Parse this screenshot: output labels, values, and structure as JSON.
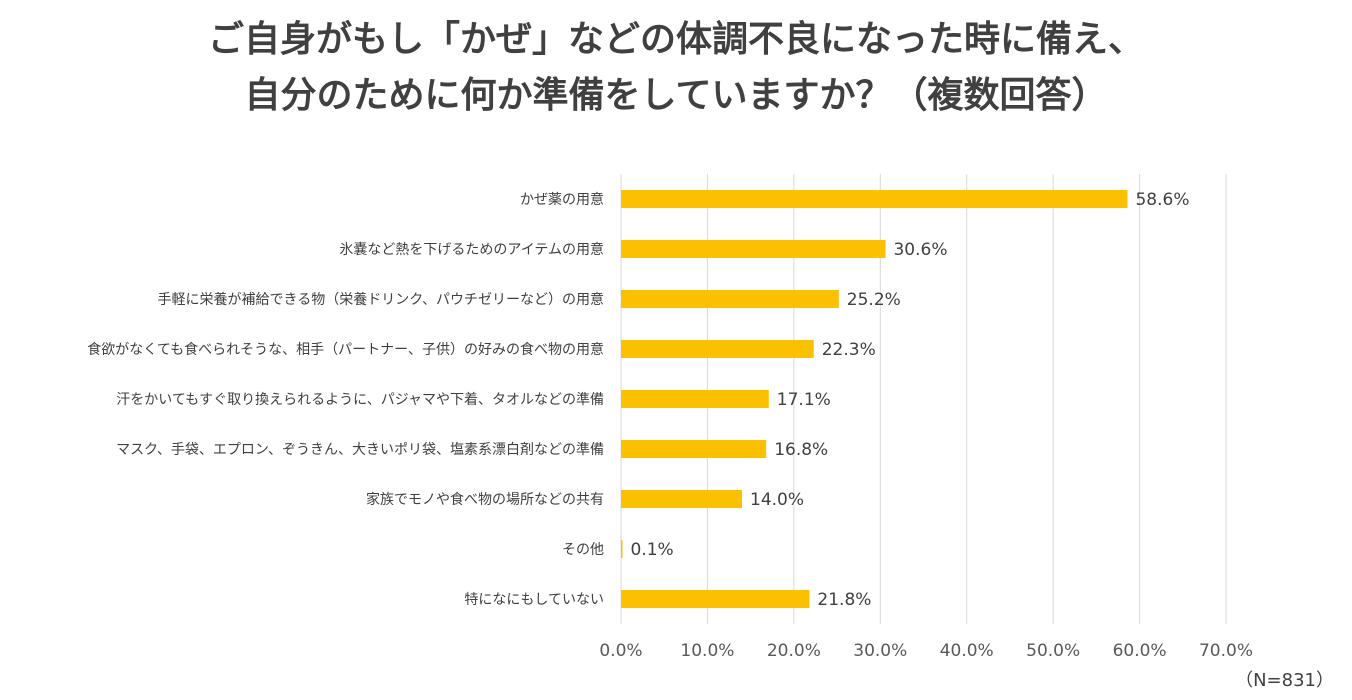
{
  "title": {
    "line1": "ご自身がもし「かぜ」などの体調不良になった時に備え、",
    "line2": "自分のために何か準備をしていますか？（複数回答）"
  },
  "note": "（N=831）",
  "colors": {
    "bar": "#fbc000",
    "grid": "#d9d9d9",
    "text": "#404040"
  },
  "chart_data": {
    "type": "bar",
    "orientation": "horizontal",
    "title": "ご自身がもし「かぜ」などの体調不良になった時に備え、自分のために何か準備をしていますか？（複数回答）",
    "categories": [
      "かぜ薬の用意",
      "氷嚢など熱を下げるためのアイテムの用意",
      "手軽に栄養が補給できる物（栄養ドリンク、パウチゼリーなど）の用意",
      "食欲がなくても食べられそうな、相手（パートナー、子供）の好みの食べ物の用意",
      "汗をかいてもすぐ取り換えられるように、パジャマや下着、タオルなどの準備",
      "マスク、手袋、エプロン、ぞうきん、大きいポリ袋、塩素系漂白剤などの準備",
      "家族でモノや食べ物の場所などの共有",
      "その他",
      "特になにもしていない"
    ],
    "values": [
      58.6,
      30.6,
      25.2,
      22.3,
      17.1,
      16.8,
      14.0,
      0.1,
      21.8
    ],
    "value_labels": [
      "58.6%",
      "30.6%",
      "25.2%",
      "22.3%",
      "17.1%",
      "16.8%",
      "14.0%",
      "0.1%",
      "21.8%"
    ],
    "xlim": [
      0,
      70
    ],
    "xticks": [
      0,
      10,
      20,
      30,
      40,
      50,
      60,
      70
    ],
    "xtick_labels": [
      "0.0%",
      "10.0%",
      "20.0%",
      "30.0%",
      "40.0%",
      "50.0%",
      "60.0%",
      "70.0%"
    ],
    "grid": true,
    "legend": "none",
    "xlabel": "",
    "ylabel": ""
  }
}
